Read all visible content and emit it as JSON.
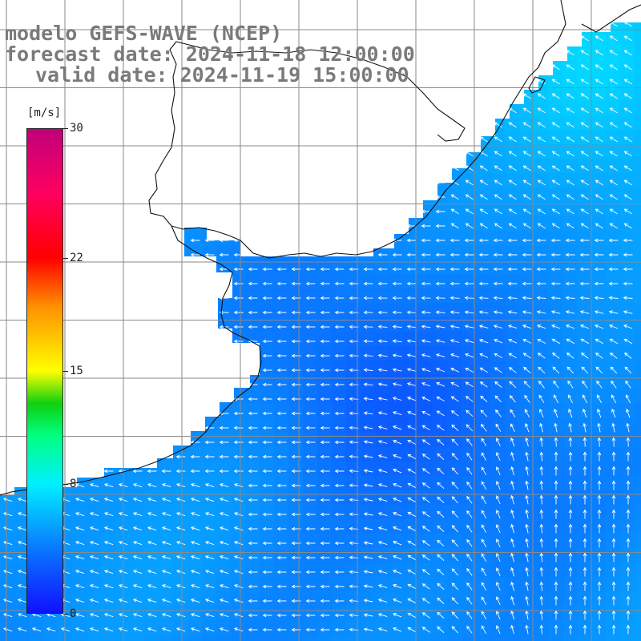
{
  "title": {
    "line1": "modelo GEFS-WAVE (NCEP)",
    "line2": "forecast date: 2024-11-18 12:00:00",
    "line3": "valid date: 2024-11-19 15:00:00"
  },
  "colorbar": {
    "unit": "[m/s]",
    "min": 0,
    "max": 30,
    "tick_labels": [
      "30",
      "22",
      "15",
      "8",
      "0"
    ],
    "tick_values": [
      30,
      22,
      15,
      8,
      0
    ],
    "color_stops": [
      {
        "value": 0,
        "color": "#1010ff"
      },
      {
        "value": 4,
        "color": "#0a78ff"
      },
      {
        "value": 8,
        "color": "#00f0ff"
      },
      {
        "value": 11,
        "color": "#00ff80"
      },
      {
        "value": 13,
        "color": "#10d010"
      },
      {
        "value": 15,
        "color": "#ffff00"
      },
      {
        "value": 19,
        "color": "#ff9000"
      },
      {
        "value": 22,
        "color": "#ff0000"
      },
      {
        "value": 26,
        "color": "#ff0060"
      },
      {
        "value": 30,
        "color": "#c0007a"
      }
    ]
  },
  "map": {
    "land_color": "#ffffff",
    "grid_color": "#8a8a8a",
    "coastline_color": "#111111",
    "arrow_color": "#ffffff",
    "background_wind_speed_mps": 5
  }
}
